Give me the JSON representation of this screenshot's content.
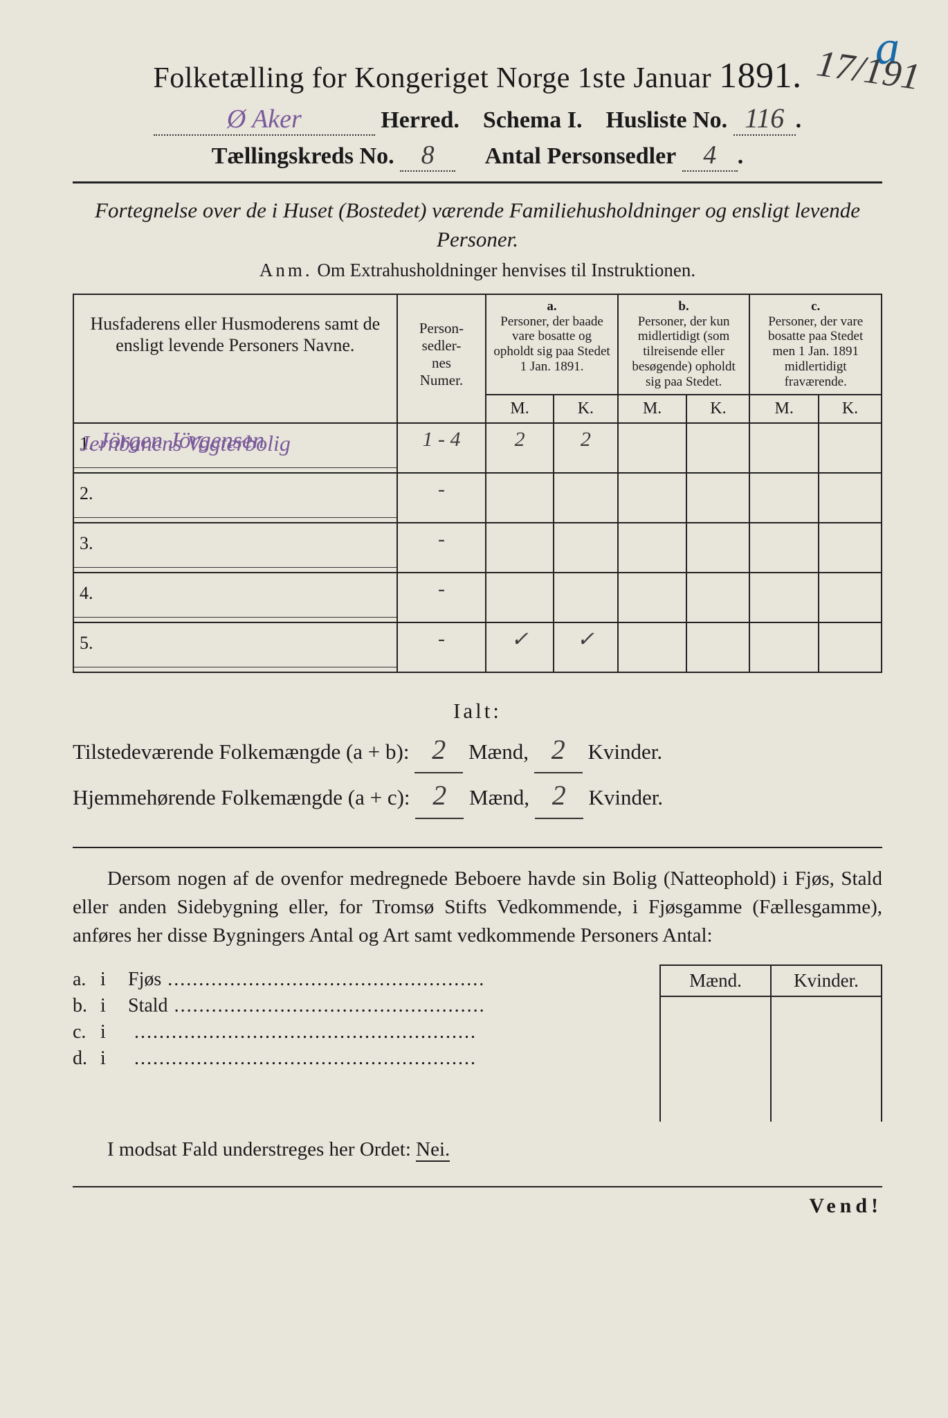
{
  "colors": {
    "paper": "#e8e5db",
    "ink": "#1a1a1a",
    "handwriting_purple": "#7a5a9a",
    "handwriting_blue": "#1a6aa8",
    "border": "#222222"
  },
  "typography": {
    "title_fontsize": 42,
    "title_big_fontsize": 52,
    "line_fontsize": 34,
    "subtitle_fontsize": 31,
    "table_fontsize": 24,
    "body_fontsize": 29
  },
  "header": {
    "title_pre": "Folketælling for Kongeriget Norge 1ste Januar ",
    "title_year": "1891.",
    "herred_value": "Ø Aker",
    "herred_label": " Herred.",
    "schema_label": "Schema I.",
    "husliste_label": "Husliste No.",
    "husliste_value": "116",
    "kreds_label": "Tællingskreds No.",
    "kreds_value": "8",
    "antal_label": "Antal Personsedler",
    "antal_value": "4"
  },
  "margin": {
    "note": "17/191",
    "letter": "a"
  },
  "subtitle": "Fortegnelse over de i Huset (Bostedet) værende Familiehusholdninger og ensligt levende Personer.",
  "anm_label": "Anm.",
  "anm_text": " Om Extrahusholdninger henvises til Instruktionen.",
  "table": {
    "col_names": "Husfaderens eller Husmoderens samt de ensligt levende Personers Navne.",
    "col_num": "Person-\nsedler-\nnes\nNumer.",
    "col_a_letter": "a.",
    "col_a": "Personer, der baade vare bosatte og opholdt sig paa Stedet 1 Jan. 1891.",
    "col_b_letter": "b.",
    "col_b": "Personer, der kun midlertidigt (som tilreisende eller besøgende) opholdt sig paa Stedet.",
    "col_c_letter": "c.",
    "col_c": "Personer, der vare bosatte paa Stedet men 1 Jan. 1891 midlertidigt fraværende.",
    "m": "M.",
    "k": "K.",
    "note_above_rows": "Jernbanens Vogterbolig",
    "rows": [
      {
        "n": "1.",
        "name": "Jörgen Jörgensen",
        "num": "1 - 4",
        "a_m": "2",
        "a_k": "2",
        "b_m": "",
        "b_k": "",
        "c_m": "",
        "c_k": ""
      },
      {
        "n": "2.",
        "name": "",
        "num": "-",
        "a_m": "",
        "a_k": "",
        "b_m": "",
        "b_k": "",
        "c_m": "",
        "c_k": ""
      },
      {
        "n": "3.",
        "name": "",
        "num": "-",
        "a_m": "",
        "a_k": "",
        "b_m": "",
        "b_k": "",
        "c_m": "",
        "c_k": ""
      },
      {
        "n": "4.",
        "name": "",
        "num": "-",
        "a_m": "",
        "a_k": "",
        "b_m": "",
        "b_k": "",
        "c_m": "",
        "c_k": ""
      },
      {
        "n": "5.",
        "name": "",
        "num": "-",
        "a_m": "✓",
        "a_k": "✓",
        "b_m": "",
        "b_k": "",
        "c_m": "",
        "c_k": ""
      }
    ]
  },
  "ialt": {
    "heading": "Ialt:",
    "line1_label": "Tilstedeværende Folkemængde (a + b):",
    "line2_label": "Hjemmehørende Folkemængde (a + c):",
    "maend": "Mænd,",
    "kvinder": "Kvinder.",
    "l1_m": "2",
    "l1_k": "2",
    "l2_m": "2",
    "l2_k": "2"
  },
  "paragraph": "Dersom nogen af de ovenfor medregnede Beboere havde sin Bolig (Natteophold) i Fjøs, Stald eller anden Sidebygning eller, for Tromsø Stifts Vedkommende, i Fjøsgamme (Fællesgamme), anføres her disse Bygningers Antal og Art samt vedkommende Personers Antal:",
  "side": {
    "hdr_m": "Mænd.",
    "hdr_k": "Kvinder.",
    "rows": [
      {
        "letter": "a.",
        "i": "i",
        "label": "Fjøs"
      },
      {
        "letter": "b.",
        "i": "i",
        "label": "Stald"
      },
      {
        "letter": "c.",
        "i": "i",
        "label": ""
      },
      {
        "letter": "d.",
        "i": "i",
        "label": ""
      }
    ]
  },
  "nei_line_pre": "I modsat Fald understreges her Ordet: ",
  "nei": "Nei.",
  "vend": "Vend!"
}
